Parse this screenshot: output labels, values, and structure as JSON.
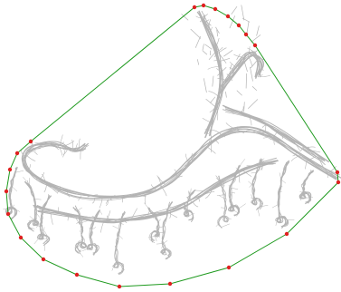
{
  "figure": {
    "colors": {
      "background": "#ffffff",
      "fractal": "#b4b4b4",
      "hull": "#1f9a1f",
      "points": "#e02020"
    },
    "icons": {
      "fractal": "fractal-set-shape",
      "hull": "convex-hull-polygon",
      "points": "hull-vertex-dot"
    }
  }
}
